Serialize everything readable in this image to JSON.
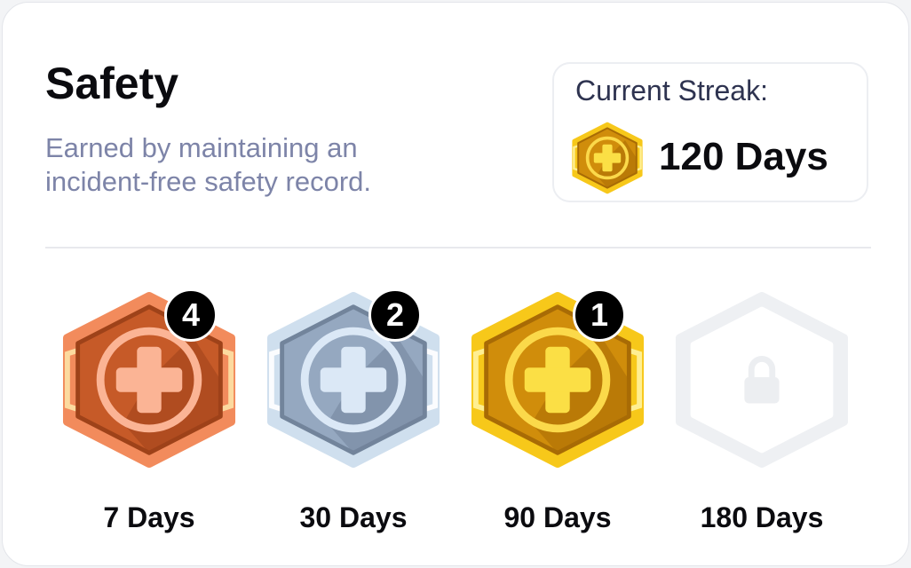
{
  "header": {
    "title": "Safety",
    "description": "Earned by maintaining an incident-free safety record."
  },
  "streak": {
    "label": "Current Streak:",
    "value": "120 Days",
    "tier": "gold"
  },
  "tiers": {
    "bronze": {
      "outer": "#f28b5c",
      "accent": "#fde2a6",
      "inner": "#c65a28",
      "shadow": "#9e4219",
      "ring": "#fbb495",
      "cross": "#fbb495"
    },
    "silver": {
      "outer": "#cfdfee",
      "accent": "#ffffff",
      "inner": "#95a8c0",
      "shadow": "#72849b",
      "ring": "#dbe8f6",
      "cross": "#dbe8f6"
    },
    "gold": {
      "outer": "#f7c81a",
      "accent": "#fff3a0",
      "inner": "#d08d0b",
      "shadow": "#a86b05",
      "ring": "#fbd94a",
      "cross": "#fbdf45"
    },
    "locked": {
      "outer": "#eef0f3",
      "accent": "#eef0f3",
      "inner": "#ffffff",
      "shadow": "#ffffff",
      "ring": "#ffffff",
      "cross": "#eceef1"
    }
  },
  "badges": [
    {
      "label": "7 Days",
      "tier": "bronze",
      "count": "4",
      "icon": "medical-cross-icon"
    },
    {
      "label": "30 Days",
      "tier": "silver",
      "count": "2",
      "icon": "medical-cross-icon"
    },
    {
      "label": "90 Days",
      "tier": "gold",
      "count": "1",
      "icon": "medical-cross-icon"
    },
    {
      "label": "180 Days",
      "tier": "locked",
      "count": null,
      "icon": "lock-icon"
    }
  ]
}
